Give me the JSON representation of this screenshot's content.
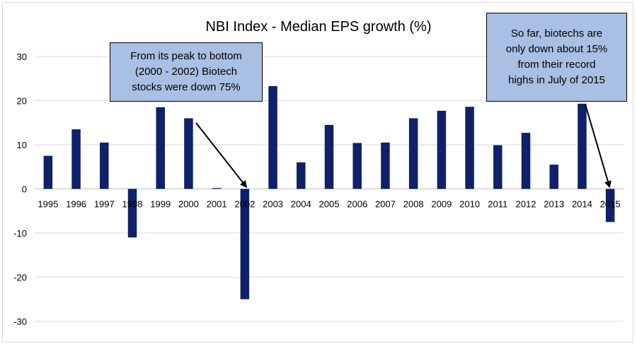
{
  "chart_data": {
    "type": "bar",
    "title": "NBI Index - Median EPS growth (%)",
    "xlabel": "",
    "ylabel": "",
    "categories": [
      "1995",
      "1996",
      "1997",
      "1998",
      "1999",
      "2000",
      "2001",
      "2002",
      "2003",
      "2004",
      "2005",
      "2006",
      "2007",
      "2008",
      "2009",
      "2010",
      "2011",
      "2012",
      "2013",
      "2014",
      "2015"
    ],
    "values": [
      7.5,
      13.5,
      10.5,
      -11,
      18.5,
      16,
      0.2,
      -25,
      23.3,
      6,
      14.5,
      10.4,
      10.5,
      16,
      17.7,
      18.6,
      9.9,
      12.7,
      5.5,
      19.3,
      -7.5
    ],
    "ylim": [
      -30,
      30
    ],
    "yticks": [
      -30,
      -20,
      -10,
      0,
      10,
      20,
      30
    ],
    "grid": true,
    "bar_color": "#0e2169",
    "annotations": [
      {
        "text": "From its peak to bottom\n(2000 - 2002) Biotech\nstocks were down 75%",
        "points_to": "2002"
      },
      {
        "text": "So far, biotechs are\nonly down about 15%\nfrom their record\nhighs in July of 2015",
        "points_to": "2015"
      }
    ]
  },
  "colors": {
    "bar": "#0e2169",
    "gridline": "#d9d9d9",
    "callout_fill": "#a9bfe3",
    "callout_border": "#000000"
  }
}
